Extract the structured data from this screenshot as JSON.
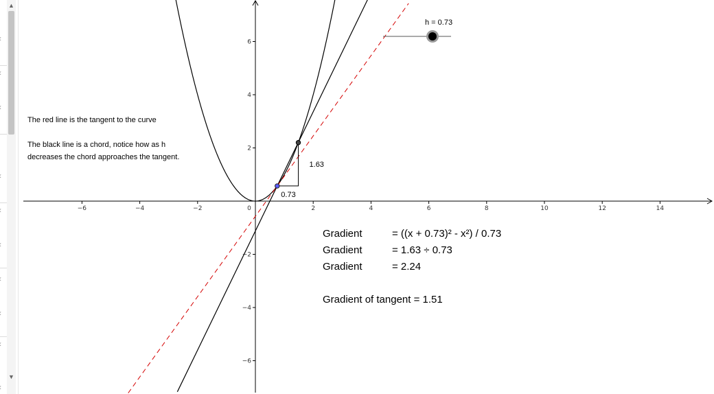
{
  "slider": {
    "label": "h = 0.73",
    "value": 0.73,
    "min": 0,
    "max": 1
  },
  "text": {
    "tangent_note": "The red line is the tangent to the curve",
    "chord_line1": "The black line is a chord, notice how as h",
    "chord_line2": "decreases the chord approaches the tangent."
  },
  "annotations": {
    "rise": "1.63",
    "run": "0.73"
  },
  "gradient_rows": [
    {
      "label": "Gradient",
      "expr": "= ((x + 0.73)² - x²) / 0.73"
    },
    {
      "label": "Gradient",
      "expr": "= 1.63 ÷ 0.73"
    },
    {
      "label": "Gradient",
      "expr": "= 2.24"
    }
  ],
  "tangent_gradient": "Gradient of tangent = 1.51",
  "colors": {
    "tangent": "#d40000",
    "curve": "#000000",
    "point": "#5c5cff",
    "slider_knob": "#000000"
  },
  "chart_data": {
    "type": "line",
    "x_ticks": [
      "−6",
      "−4",
      "−2",
      "0",
      "2",
      "4",
      "6",
      "8",
      "10",
      "12",
      "14"
    ],
    "y_ticks": [
      "6",
      "4",
      "2",
      "−2",
      "−4",
      "−6"
    ],
    "xlim": [
      -8,
      15.8
    ],
    "ylim": [
      -7.2,
      7.5
    ],
    "curve": {
      "name": "",
      "expr": "x^2"
    },
    "point_a": {
      "x": 0.755,
      "y": 0.57
    },
    "point_b": {
      "x": 1.485,
      "y": 2.2
    },
    "chord_slope": 2.24,
    "tangent_slope": 1.51,
    "grid": false
  }
}
